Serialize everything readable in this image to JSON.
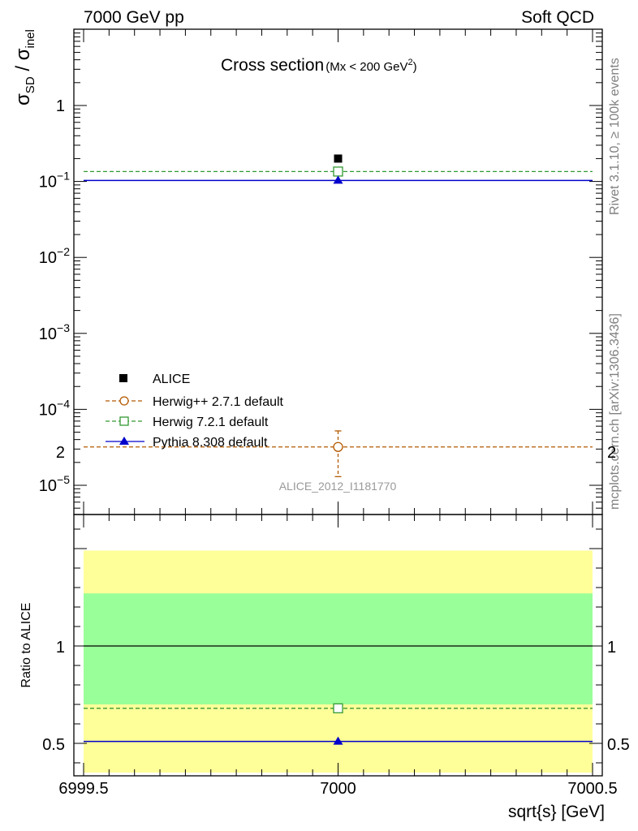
{
  "header": {
    "left": "7000 GeV pp",
    "right": "Soft QCD"
  },
  "side_labels": {
    "rivet": "Rivet 3.1.10, ≥ 100k events",
    "mcplots": "mcplots.cern.ch [arXiv:1306.3436]"
  },
  "chart_data": [
    {
      "type": "scatter",
      "title": "Cross section",
      "title_sub": "(Mx < 200 GeV",
      "title_sup": "2",
      "title_close": ")",
      "ylabel": {
        "main": "σ",
        "sub1": "SD",
        "slash": " / σ",
        "sub2": "inel"
      },
      "yscale": "log",
      "ylim": [
        3e-06,
        10
      ],
      "xlim": [
        6999.5,
        7000.5
      ],
      "yticks": [
        {
          "base": "1",
          "exp": ""
        },
        {
          "base": "10",
          "exp": "−1"
        },
        {
          "base": "10",
          "exp": "−2"
        },
        {
          "base": "10",
          "exp": "−3"
        },
        {
          "base": "10",
          "exp": "−4"
        },
        {
          "base": "10",
          "exp": "−5"
        }
      ],
      "ytick_values": [
        1,
        0.1,
        0.01,
        0.001,
        0.0001,
        1e-05
      ],
      "watermark": "ALICE_2012_I1181770",
      "legend_position": "lower-left",
      "series": [
        {
          "name": "ALICE",
          "x": [
            7000
          ],
          "y": [
            0.2
          ],
          "color": "#000000",
          "marker": "filled-square"
        },
        {
          "name": "Herwig++ 2.7.1 default",
          "x": [
            7000
          ],
          "y": [
            3.2e-05
          ],
          "yerr_low": 1.3e-05,
          "yerr_high": 5.2e-05,
          "color": "#b35900",
          "marker": "open-circle",
          "line": "dashed"
        },
        {
          "name": "Herwig 7.2.1 default",
          "x": [
            7000
          ],
          "y": [
            0.135
          ],
          "color": "#339933",
          "marker": "open-square",
          "line": "dashed"
        },
        {
          "name": "Pythia 8.308 default",
          "x": [
            7000
          ],
          "y": [
            0.103
          ],
          "color": "#0000cc",
          "marker": "filled-triangle",
          "line": "solid"
        }
      ]
    },
    {
      "type": "scatter",
      "ylabel": "Ratio to ALICE",
      "xlabel": "sqrt{s} [GeV]",
      "ylim": [
        0.35,
        2.35
      ],
      "xlim": [
        6999.5,
        7000.5
      ],
      "xticks": [
        "6999.5",
        "7000",
        "7000.5"
      ],
      "xtick_values": [
        6999.5,
        7000,
        7000.5
      ],
      "yticks": [
        "0.5",
        "1",
        "2"
      ],
      "ytick_values": [
        0.5,
        1,
        2
      ],
      "bands": [
        {
          "name": "total uncertainty",
          "low": 0.35,
          "high": 1.49,
          "color": "#ffff99"
        },
        {
          "name": "stat uncertainty",
          "low": 0.7,
          "high": 1.27,
          "color": "#99ff99"
        }
      ],
      "series": [
        {
          "name": "ALICE",
          "y": [
            1.0
          ],
          "color": "#000000"
        },
        {
          "name": "Herwig 7.2.1 default",
          "x": [
            7000
          ],
          "y": [
            0.68
          ],
          "color": "#339933",
          "marker": "open-square",
          "line": "dashed"
        },
        {
          "name": "Pythia 8.308 default",
          "x": [
            7000
          ],
          "y": [
            0.51
          ],
          "color": "#0000cc",
          "marker": "filled-triangle",
          "line": "solid"
        }
      ]
    }
  ]
}
